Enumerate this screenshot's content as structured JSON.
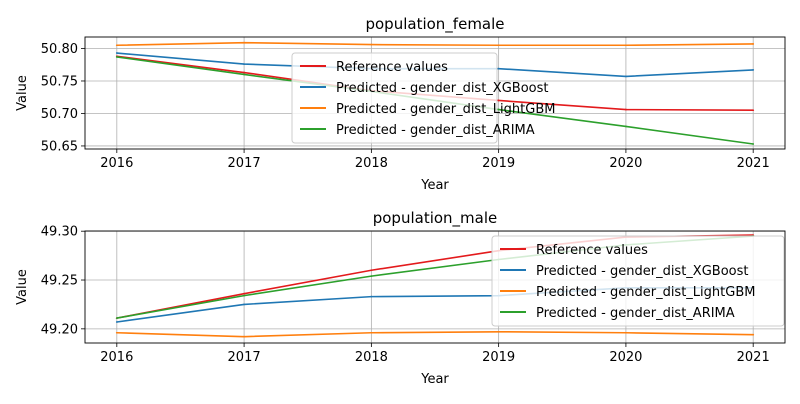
{
  "chart_data": [
    {
      "type": "line",
      "title": "population_female",
      "xlabel": "Year",
      "ylabel": "Value",
      "x": [
        2016,
        2017,
        2018,
        2019,
        2020,
        2021
      ],
      "xlim": [
        2015.75,
        2021.25
      ],
      "ylim": [
        50.6453,
        50.8177
      ],
      "yticks": [
        "50.65",
        "50.70",
        "50.75",
        "50.80"
      ],
      "grid": true,
      "legend_position": "center",
      "series": [
        {
          "name": "Reference values",
          "color": "#e31a1c",
          "values": [
            50.788,
            50.763,
            50.735,
            50.72,
            50.706,
            50.705
          ]
        },
        {
          "name": "Predicted - gender_dist_XGBoost",
          "color": "#1f77b4",
          "values": [
            50.793,
            50.776,
            50.769,
            50.769,
            50.757,
            50.767
          ]
        },
        {
          "name": "Predicted - gender_dist_LightGBM",
          "color": "#ff7f0e",
          "values": [
            50.805,
            50.809,
            50.806,
            50.805,
            50.805,
            50.807
          ]
        },
        {
          "name": "Predicted - gender_dist_ARIMA",
          "color": "#2ca02c",
          "values": [
            50.787,
            50.76,
            50.734,
            50.706,
            50.68,
            50.653
          ]
        }
      ]
    },
    {
      "type": "line",
      "title": "population_male",
      "xlabel": "Year",
      "ylabel": "Value",
      "x": [
        2016,
        2017,
        2018,
        2019,
        2020,
        2021
      ],
      "xlim": [
        2015.75,
        2021.25
      ],
      "ylim": [
        49.1855,
        49.3002
      ],
      "yticks": [
        "49.20",
        "49.25",
        "49.30"
      ],
      "grid": true,
      "legend_position": "upper right",
      "series": [
        {
          "name": "Reference values",
          "color": "#e31a1c",
          "values": [
            49.211,
            49.236,
            49.26,
            49.28,
            49.294,
            49.296
          ]
        },
        {
          "name": "Predicted - gender_dist_XGBoost",
          "color": "#1f77b4",
          "values": [
            49.207,
            49.225,
            49.233,
            49.234,
            49.242,
            49.242
          ]
        },
        {
          "name": "Predicted - gender_dist_LightGBM",
          "color": "#ff7f0e",
          "values": [
            49.196,
            49.192,
            49.196,
            49.197,
            49.196,
            49.194
          ]
        },
        {
          "name": "Predicted - gender_dist_ARIMA",
          "color": "#2ca02c",
          "values": [
            49.211,
            49.234,
            49.254,
            49.271,
            49.286,
            49.295
          ]
        }
      ]
    }
  ]
}
